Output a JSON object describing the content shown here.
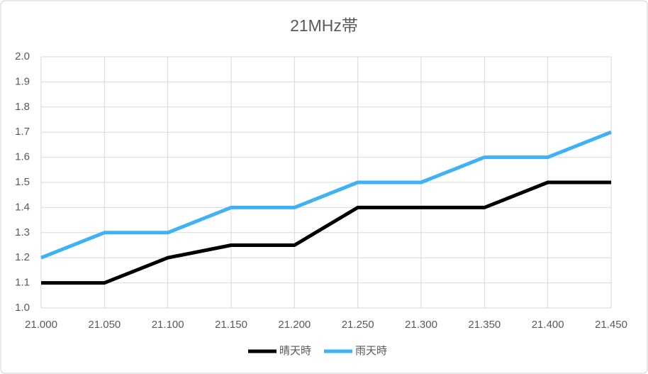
{
  "chart_data": {
    "type": "line",
    "title": "21MHz帯",
    "categories": [
      "21.000",
      "21.050",
      "21.100",
      "21.150",
      "21.200",
      "21.250",
      "21.300",
      "21.350",
      "21.400",
      "21.450"
    ],
    "series": [
      {
        "name": "晴天時",
        "color": "#000000",
        "values": [
          1.1,
          1.1,
          1.2,
          1.25,
          1.25,
          1.4,
          1.4,
          1.4,
          1.5,
          1.5
        ]
      },
      {
        "name": "雨天時",
        "color": "#3fb2f5",
        "values": [
          1.2,
          1.3,
          1.3,
          1.4,
          1.4,
          1.5,
          1.5,
          1.6,
          1.6,
          1.7
        ]
      }
    ],
    "ylim": [
      1.0,
      2.0
    ],
    "yticks": [
      {
        "value": 1.0,
        "label": "1.0"
      },
      1.1,
      1.2,
      1.3,
      1.4,
      1.5,
      1.6,
      1.7,
      1.8,
      1.9,
      {
        "value": 2.0,
        "label": "2.0"
      }
    ],
    "grid": true,
    "legend": "bottom"
  }
}
